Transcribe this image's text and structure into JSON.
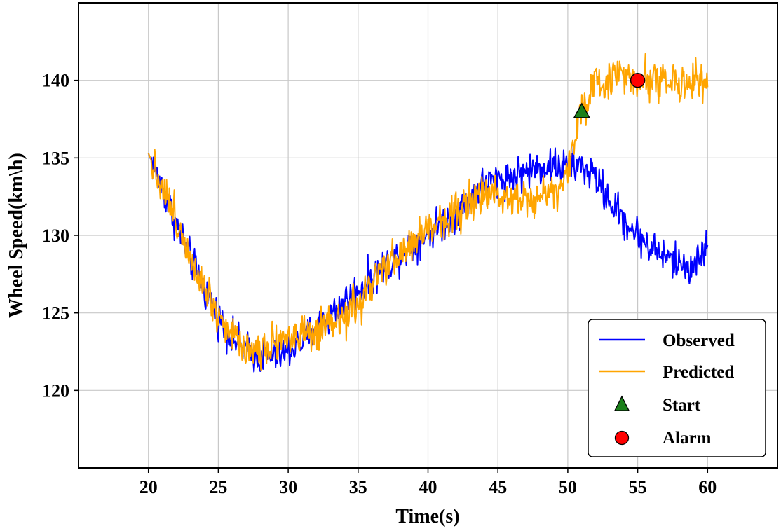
{
  "chart_data": {
    "type": "line",
    "title": "",
    "xlabel": "Time(s)",
    "ylabel": "Wheel Speed(km\\h)",
    "xlim": [
      15,
      65
    ],
    "ylim": [
      115,
      145
    ],
    "xticks": [
      20,
      25,
      30,
      35,
      40,
      45,
      50,
      55,
      60
    ],
    "yticks": [
      120,
      125,
      130,
      135,
      140
    ],
    "grid": true,
    "legend_position": "lower-right",
    "series": [
      {
        "name": "Observed",
        "color": "#0000ff",
        "x": [
          20,
          21,
          22,
          23,
          24,
          25,
          26,
          27,
          28,
          29,
          30,
          31,
          32,
          33,
          34,
          35,
          36,
          37,
          38,
          39,
          40,
          41,
          42,
          43,
          44,
          45,
          46,
          47,
          48,
          49,
          50,
          51,
          52,
          53,
          54,
          55,
          56,
          57,
          58,
          59,
          60
        ],
        "values": [
          135.3,
          133.0,
          130.7,
          128.5,
          126.5,
          124.7,
          123.4,
          122.6,
          122.2,
          122.2,
          122.5,
          123.2,
          124.0,
          124.9,
          125.7,
          126.5,
          127.3,
          128.1,
          128.8,
          129.5,
          130.2,
          130.8,
          131.4,
          132.4,
          133.3,
          133.6,
          133.8,
          134.1,
          134.4,
          134.5,
          134.4,
          134.5,
          133.7,
          132.2,
          131.0,
          130.0,
          129.2,
          128.6,
          128.1,
          128.0,
          129.3
        ],
        "noise": 0.9
      },
      {
        "name": "Predicted",
        "color": "#ffa500",
        "x": [
          20,
          21,
          22,
          23,
          24,
          25,
          26,
          27,
          28,
          29,
          30,
          31,
          32,
          33,
          34,
          35,
          36,
          37,
          38,
          39,
          40,
          41,
          42,
          43,
          44,
          45,
          46,
          47,
          48,
          49,
          50,
          50.5,
          51,
          52,
          53,
          54,
          55,
          56,
          57,
          58,
          59,
          60
        ],
        "values": [
          135.3,
          133.2,
          130.9,
          128.8,
          126.8,
          124.9,
          123.6,
          122.8,
          122.6,
          123.3,
          123.4,
          123.5,
          123.6,
          124.0,
          124.7,
          125.5,
          126.8,
          128.0,
          128.7,
          129.6,
          130.4,
          131.0,
          131.6,
          132.1,
          132.5,
          132.7,
          132.6,
          132.4,
          132.5,
          132.9,
          134.0,
          136.2,
          138.3,
          139.5,
          140.2,
          140.4,
          140.2,
          140.1,
          140.0,
          139.9,
          139.8,
          139.6
        ],
        "noise": 1.0
      }
    ],
    "markers": [
      {
        "name": "Start",
        "shape": "triangle",
        "color": "#1a7f1a",
        "x": 51,
        "y": 138
      },
      {
        "name": "Alarm",
        "shape": "circle",
        "color": "#ff0000",
        "x": 55,
        "y": 140
      }
    ]
  },
  "legend": {
    "observed": "Observed",
    "predicted": "Predicted",
    "start": "Start",
    "alarm": "Alarm"
  }
}
